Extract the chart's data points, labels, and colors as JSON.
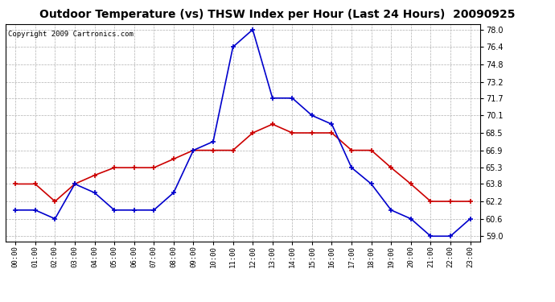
{
  "title": "Outdoor Temperature (vs) THSW Index per Hour (Last 24 Hours)  20090925",
  "copyright": "Copyright 2009 Cartronics.com",
  "x_labels": [
    "00:00",
    "01:00",
    "02:00",
    "03:00",
    "04:00",
    "05:00",
    "06:00",
    "07:00",
    "08:00",
    "09:00",
    "10:00",
    "11:00",
    "12:00",
    "13:00",
    "14:00",
    "15:00",
    "16:00",
    "17:00",
    "18:00",
    "19:00",
    "20:00",
    "21:00",
    "22:00",
    "23:00"
  ],
  "temp_red": [
    63.8,
    63.8,
    62.2,
    63.8,
    64.6,
    65.3,
    65.3,
    65.3,
    66.1,
    66.9,
    66.9,
    66.9,
    68.5,
    69.3,
    68.5,
    68.5,
    68.5,
    66.9,
    66.9,
    65.3,
    63.8,
    62.2,
    62.2,
    62.2
  ],
  "thsw_blue": [
    61.4,
    61.4,
    60.6,
    63.8,
    63.0,
    61.4,
    61.4,
    61.4,
    63.0,
    66.9,
    67.7,
    76.4,
    78.0,
    71.7,
    71.7,
    70.1,
    69.3,
    65.3,
    63.8,
    61.4,
    60.6,
    59.0,
    59.0,
    60.6
  ],
  "y_ticks": [
    59.0,
    60.6,
    62.2,
    63.8,
    65.3,
    66.9,
    68.5,
    70.1,
    71.7,
    73.2,
    74.8,
    76.4,
    78.0
  ],
  "ylim": [
    58.5,
    78.5
  ],
  "bg_color": "#ffffff",
  "plot_bg": "#ffffff",
  "grid_color": "#b0b0b0",
  "red_color": "#cc0000",
  "blue_color": "#0000cc",
  "title_fontsize": 10,
  "copyright_fontsize": 6.5
}
